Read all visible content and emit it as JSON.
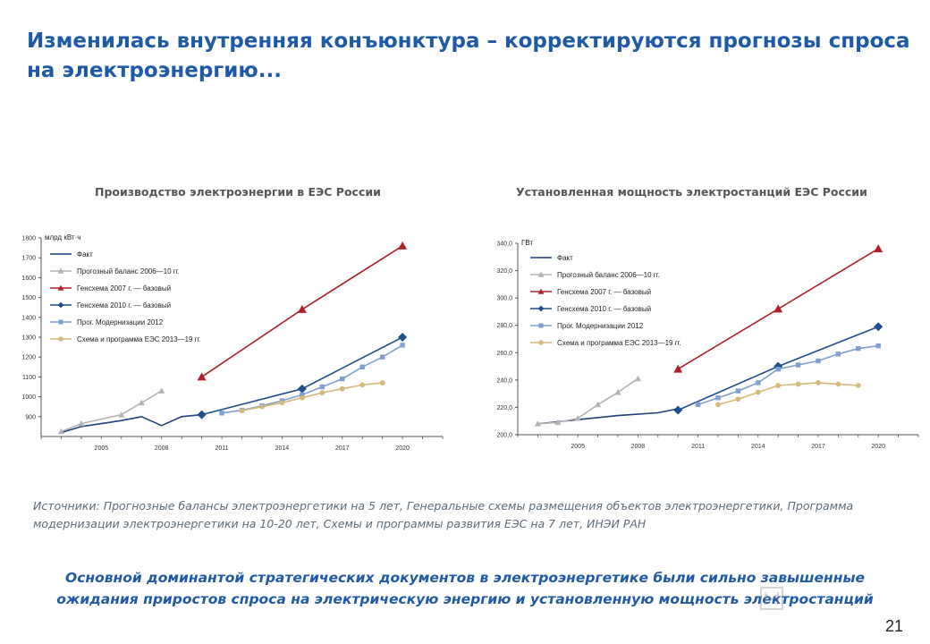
{
  "title": "Изменилась внутренняя конъюнктура – корректируются прогнозы спроса на электроэнергию...",
  "sources_text": "Источники: Прогнозные балансы электроэнергетики на 5 лет, Генеральные схемы размещения объектов электроэнергетики, Программа модернизации электроэнергетики на 10-20 лет, Схемы и программы развития ЕЭС на 7 лет, ИНЭИ РАН",
  "conclusion_text": "Основной доминантой стратегических документов в электроэнергетике были сильно завышенные ожидания приростов спроса на электрическую энергию и установленную мощность электростанций",
  "page_number": "21",
  "colors": {
    "title": "#1f5aa6",
    "fact": "#1f3f7a",
    "balance": "#b3b3b3",
    "gen2007": "#b0202a",
    "gen2010": "#1f4e8c",
    "modern": "#7f9fd0",
    "ees": "#d4b97a"
  },
  "chart_data": [
    {
      "type": "line",
      "title": "Производство электроэнергии в ЕЭС России",
      "ylabel": "млрд кВт·ч",
      "xlim": [
        2002,
        2022
      ],
      "ylim": [
        800,
        1800
      ],
      "yticks": [
        900,
        1000,
        1100,
        1200,
        1300,
        1400,
        1500,
        1600,
        1700,
        1800
      ],
      "xticks": [
        2005,
        2008,
        2011,
        2014,
        2017,
        2020
      ],
      "legend_position": "top-left",
      "series": [
        {
          "name": "Факт",
          "color": "#1f3f7a",
          "marker": "none",
          "x": [
            2003,
            2004,
            2005,
            2006,
            2007,
            2008,
            2009,
            2010
          ],
          "y": [
            820,
            850,
            865,
            880,
            900,
            855,
            900,
            910
          ]
        },
        {
          "name": "Прогозный баланс 2006—10 гг.",
          "color": "#b3b3b3",
          "marker": "triangle",
          "x": [
            2003,
            2004,
            2006,
            2007,
            2008
          ],
          "y": [
            825,
            865,
            910,
            970,
            1030
          ]
        },
        {
          "name": "Генсхема 2007 г. — базовый",
          "color": "#b0202a",
          "marker": "triangle",
          "x": [
            2010,
            2015,
            2020
          ],
          "y": [
            1100,
            1440,
            1760
          ]
        },
        {
          "name": "Генсхема 2010 г. — базовый",
          "color": "#1f4e8c",
          "marker": "diamond",
          "x": [
            2010,
            2015,
            2020
          ],
          "y": [
            910,
            1040,
            1300
          ]
        },
        {
          "name": "Прог. Модернизации 2012",
          "color": "#7f9fd0",
          "marker": "square",
          "x": [
            2011,
            2012,
            2013,
            2014,
            2015,
            2016,
            2017,
            2018,
            2019,
            2020
          ],
          "y": [
            918,
            932,
            955,
            980,
            1010,
            1050,
            1090,
            1150,
            1200,
            1260
          ]
        },
        {
          "name": "Схема и программа ЕЭС 2013—19 гг.",
          "color": "#d4b97a",
          "marker": "circle",
          "x": [
            2012,
            2013,
            2014,
            2015,
            2016,
            2017,
            2018,
            2019
          ],
          "y": [
            930,
            950,
            970,
            995,
            1020,
            1040,
            1060,
            1070
          ]
        }
      ]
    },
    {
      "type": "line",
      "title": "Установленная мощность электростанций ЕЭС России",
      "ylabel": "ГВт",
      "xlim": [
        2002,
        2022
      ],
      "ylim": [
        200,
        340
      ],
      "yticks": [
        "200,0",
        "220,0",
        "240,0",
        "260,0",
        "280,0",
        "300,0",
        "320,0",
        "340,0"
      ],
      "xticks": [
        2005,
        2008,
        2011,
        2014,
        2017,
        2020
      ],
      "legend_position": "top-left",
      "series": [
        {
          "name": "Факт",
          "color": "#1f3f7a",
          "marker": "none",
          "x": [
            2003,
            2005,
            2007,
            2009,
            2010
          ],
          "y": [
            208,
            211,
            214,
            216,
            219
          ]
        },
        {
          "name": "Прогозный баланс 2006—10 гг.",
          "color": "#b3b3b3",
          "marker": "triangle",
          "x": [
            2003,
            2004,
            2005,
            2006,
            2007,
            2008
          ],
          "y": [
            208,
            209,
            212,
            222,
            231,
            241
          ]
        },
        {
          "name": "Генсхема 2007 г. — базовый",
          "color": "#b0202a",
          "marker": "triangle",
          "x": [
            2010,
            2015,
            2020
          ],
          "y": [
            248,
            292,
            336
          ]
        },
        {
          "name": "Генсхема 2010 г. — базовый",
          "color": "#1f4e8c",
          "marker": "diamond",
          "x": [
            2010,
            2015,
            2020
          ],
          "y": [
            218,
            250,
            279
          ]
        },
        {
          "name": "Прог. Модернизации 2012",
          "color": "#7f9fd0",
          "marker": "square",
          "x": [
            2011,
            2012,
            2013,
            2014,
            2015,
            2016,
            2017,
            2018,
            2019,
            2020
          ],
          "y": [
            222,
            227,
            232,
            238,
            248,
            251,
            254,
            259,
            263,
            265
          ]
        },
        {
          "name": "Схема и программа ЕЭС 2013—19 гг.",
          "color": "#d4b97a",
          "marker": "circle",
          "x": [
            2012,
            2013,
            2014,
            2015,
            2016,
            2017,
            2018,
            2019
          ],
          "y": [
            222,
            226,
            231,
            236,
            237,
            238,
            237,
            236
          ]
        }
      ]
    }
  ]
}
